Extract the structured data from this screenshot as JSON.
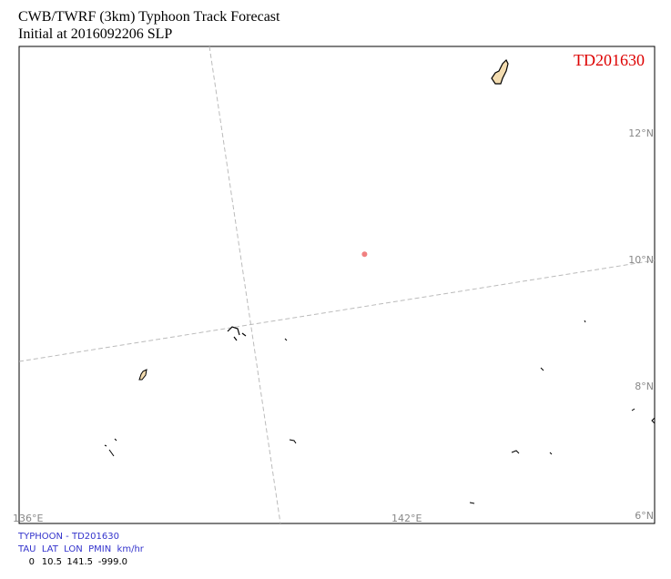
{
  "title_line1": "CWB/TWRF (3km) Typhoon Track Forecast",
  "title_line2": "Initial at 2016092206  SLP",
  "storm_label": "TD201630",
  "storm_color": "#dd0000",
  "track_point_color": "#f08080",
  "lat_labels": [
    "12°N",
    "10°N",
    "8°N",
    "6°N"
  ],
  "lon_labels": [
    "136°E",
    "142°E"
  ],
  "info": {
    "line1": "TYPHOON - TD201630",
    "line2": "TAU  LAT  LON  PMIN  km/hr",
    "row": {
      "tau": "0",
      "lat": "10.5",
      "lon": "141.5",
      "pmin": "-999.0"
    }
  },
  "track": [
    {
      "tau": 0,
      "lat": 10.5,
      "lon": 141.5
    }
  ]
}
